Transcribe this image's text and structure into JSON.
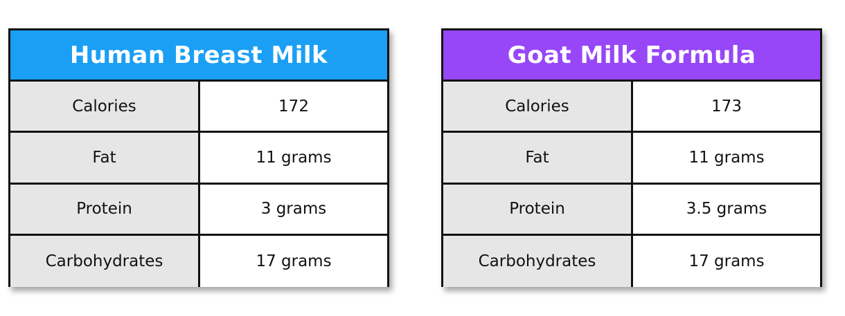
{
  "tables": [
    {
      "title": "Human Breast Milk",
      "header_color": "#1a9ff5",
      "rows": [
        {
          "label": "Calories",
          "value": "172"
        },
        {
          "label": "Fat",
          "value": "11 grams"
        },
        {
          "label": "Protein",
          "value": "3 grams"
        },
        {
          "label": "Carbohydrates",
          "value": "17 grams"
        }
      ]
    },
    {
      "title": "Goat Milk Formula",
      "header_color": "#9747f7",
      "rows": [
        {
          "label": "Calories",
          "value": "173"
        },
        {
          "label": "Fat",
          "value": "11 grams"
        },
        {
          "label": "Protein",
          "value": "3.5 grams"
        },
        {
          "label": "Carbohydrates",
          "value": "17 grams"
        }
      ]
    }
  ]
}
